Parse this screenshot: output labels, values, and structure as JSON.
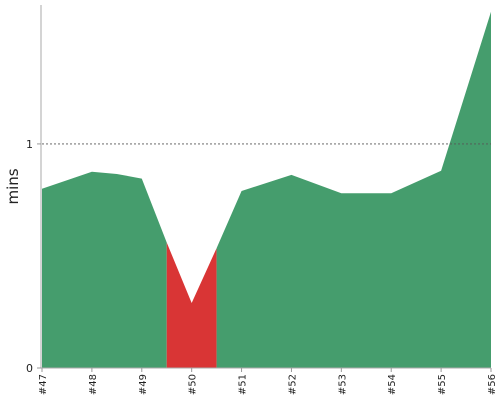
{
  "chart_data": {
    "type": "area",
    "ylabel": "mins",
    "xlabel": "",
    "ylim": [
      0,
      1.62
    ],
    "yticks": [
      0,
      1
    ],
    "reference_line": {
      "y": 1,
      "style": "dashed"
    },
    "grid": false,
    "categories": [
      "#47",
      "#48",
      "#49",
      "#50",
      "#51",
      "#52",
      "#53",
      "#54",
      "#55",
      "#56"
    ],
    "series": [
      {
        "points": [
          {
            "x": 47,
            "y": 0.8
          },
          {
            "x": 48,
            "y": 0.876
          },
          {
            "x": 48.5,
            "y": 0.866
          },
          {
            "x": 49,
            "y": 0.845
          },
          {
            "x": 49.5,
            "y": 0.56
          },
          {
            "x": 50,
            "y": 0.29
          },
          {
            "x": 50.5,
            "y": 0.535
          },
          {
            "x": 51,
            "y": 0.79
          },
          {
            "x": 52,
            "y": 0.862
          },
          {
            "x": 53,
            "y": 0.78
          },
          {
            "x": 54,
            "y": 0.78
          },
          {
            "x": 55,
            "y": 0.88
          },
          {
            "x": 56,
            "y": 1.59
          }
        ],
        "segments": [
          {
            "from": 47,
            "to": 49.5,
            "color": "#459D6D"
          },
          {
            "from": 49.5,
            "to": 50.5,
            "color": "#D93535"
          },
          {
            "from": 50.5,
            "to": 56,
            "color": "#459D6D"
          }
        ]
      }
    ]
  }
}
